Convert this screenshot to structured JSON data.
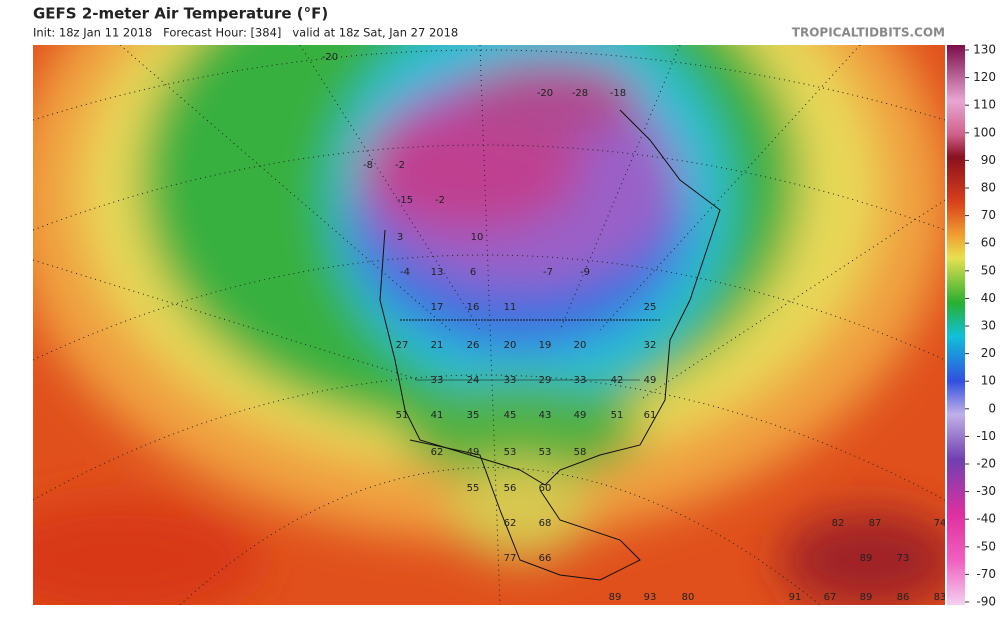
{
  "header": {
    "title": "GEFS 2-meter Air Temperature (°F)",
    "info": "Init: 18z Jan 11 2018   Forecast Hour: [384]   valid at 18z Sat, Jan 27 2018",
    "site": "TROPICALTIDBITS.COM"
  },
  "colorbar": {
    "ticks": [
      130,
      120,
      110,
      100,
      90,
      80,
      70,
      60,
      50,
      40,
      30,
      20,
      10,
      0,
      -10,
      -20,
      -30,
      -40,
      -50,
      -70,
      -90
    ]
  },
  "map_labels": [
    -20,
    -20,
    -28,
    -18,
    -8,
    -2,
    -15,
    -2,
    3,
    10,
    -4,
    13,
    6,
    -7,
    -9,
    17,
    16,
    11,
    25,
    27,
    21,
    26,
    20,
    19,
    20,
    32,
    33,
    24,
    33,
    29,
    33,
    42,
    49,
    51,
    41,
    35,
    45,
    43,
    49,
    51,
    61,
    62,
    49,
    53,
    53,
    58,
    55,
    56,
    60,
    62,
    68,
    77,
    66,
    82,
    87,
    74,
    89,
    73,
    91,
    67,
    89,
    86,
    83,
    89,
    93,
    80
  ]
}
